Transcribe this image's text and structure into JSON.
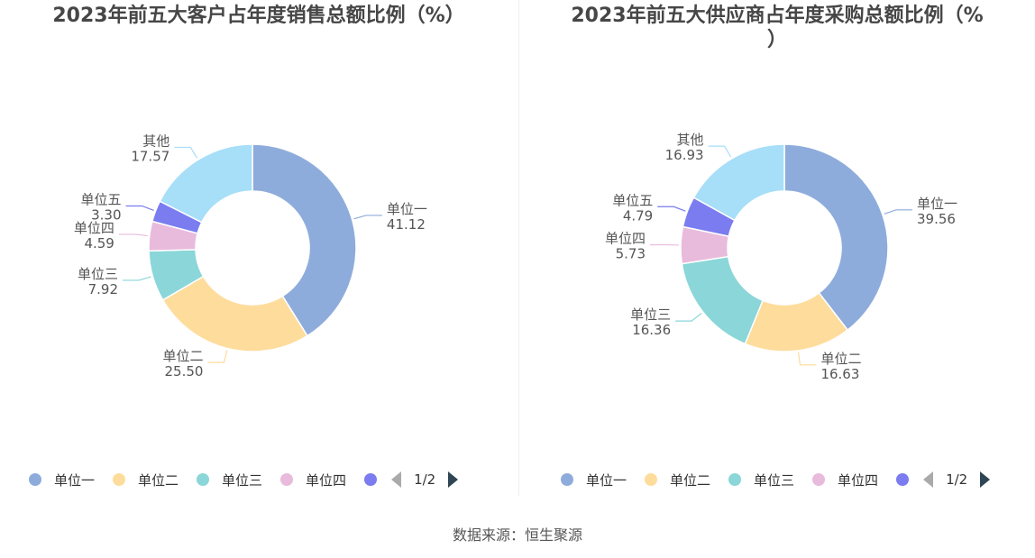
{
  "chart_data": [
    {
      "type": "pie",
      "title": "2023年前五大客户占年度销售总额比例（%）",
      "categories": [
        "单位一",
        "单位二",
        "单位三",
        "单位四",
        "单位五",
        "其他"
      ],
      "values": [
        41.12,
        25.5,
        7.92,
        4.59,
        3.3,
        17.57
      ],
      "value_labels": [
        "41.12",
        "25.50",
        "7.92",
        "4.59",
        "3.30",
        "17.57"
      ],
      "colors": [
        "#8eacdb",
        "#fedc9c",
        "#8ad6d8",
        "#e8bbdc",
        "#7a7cf0",
        "#a7def8"
      ],
      "legend_visible": [
        "单位一",
        "单位二",
        "单位三",
        "单位四"
      ],
      "legend_placement": "bottom",
      "pager": "1/2"
    },
    {
      "type": "pie",
      "title_lines": [
        "2023年前五大供应商占年度采购总额比例（%",
        "）"
      ],
      "categories": [
        "单位一",
        "单位二",
        "单位三",
        "单位四",
        "单位五",
        "其他"
      ],
      "values": [
        39.56,
        16.63,
        16.36,
        5.73,
        4.79,
        16.93
      ],
      "value_labels": [
        "39.56",
        "16.63",
        "16.36",
        "5.73",
        "4.79",
        "16.93"
      ],
      "colors": [
        "#8eacdb",
        "#fedc9c",
        "#8ad6d8",
        "#e8bbdc",
        "#7a7cf0",
        "#a7def8"
      ],
      "legend_visible": [
        "单位一",
        "单位二",
        "单位三",
        "单位四"
      ],
      "legend_placement": "bottom",
      "pager": "1/2"
    }
  ],
  "source": "数据来源：恒生聚源"
}
